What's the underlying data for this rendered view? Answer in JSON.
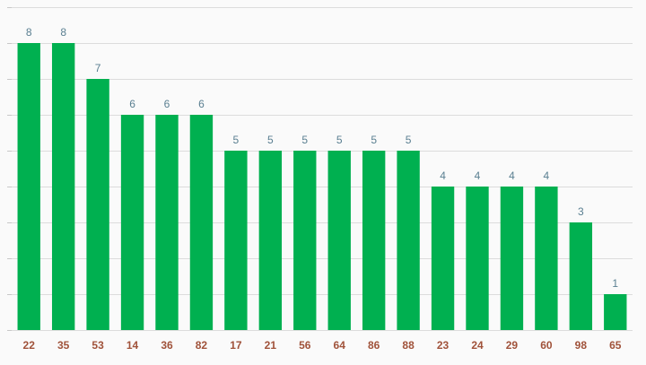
{
  "chart_data": {
    "type": "bar",
    "categories": [
      "22",
      "35",
      "53",
      "14",
      "36",
      "82",
      "17",
      "21",
      "56",
      "64",
      "86",
      "88",
      "23",
      "24",
      "29",
      "60",
      "98",
      "65"
    ],
    "values": [
      8,
      8,
      7,
      6,
      6,
      6,
      5,
      5,
      5,
      5,
      5,
      5,
      4,
      4,
      4,
      4,
      3,
      1
    ],
    "title": "",
    "xlabel": "",
    "ylabel": "",
    "ylim": [
      0,
      9
    ],
    "grid": true,
    "legend": "none",
    "colors": {
      "bar": "#00b050",
      "data_label": "#5a7f91",
      "category_label": "#a0523a",
      "grid": "#dcdcdc",
      "background": "#fafafa"
    }
  }
}
